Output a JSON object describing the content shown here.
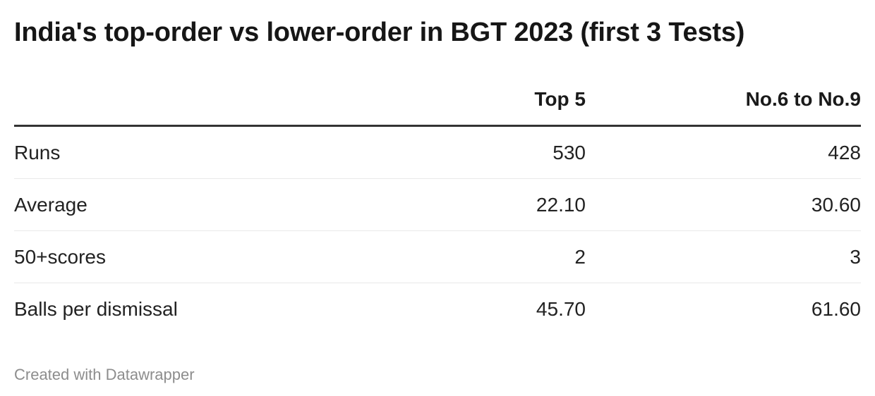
{
  "title": "India's top-order vs lower-order in BGT 2023 (first 3 Tests)",
  "table": {
    "header": {
      "label": "",
      "col1": "Top 5",
      "col2": "No.6 to No.9"
    },
    "rows": [
      {
        "label": "Runs",
        "col1": "530",
        "col2": "428"
      },
      {
        "label": "Average",
        "col1": "22.10",
        "col2": "30.60"
      },
      {
        "label": "50+scores",
        "col1": "2",
        "col2": "3"
      },
      {
        "label": "Balls per dismissal",
        "col1": "45.70",
        "col2": "61.60"
      }
    ]
  },
  "footer": {
    "attribution": "Created with Datawrapper"
  },
  "colors": {
    "title_text": "#161616",
    "body_text": "#222222",
    "header_rule": "#333333",
    "row_rule": "#e9e9e9",
    "attribution_text": "#8d8d8d",
    "background": "#ffffff"
  },
  "chart_data": {
    "type": "table",
    "title": "India's top-order vs lower-order in BGT 2023 (first 3 Tests)",
    "categories": [
      "Runs",
      "Average",
      "50+scores",
      "Balls per dismissal"
    ],
    "series": [
      {
        "name": "Top 5",
        "values": [
          530,
          22.1,
          2,
          45.7
        ]
      },
      {
        "name": "No.6 to No.9",
        "values": [
          428,
          30.6,
          3,
          61.6
        ]
      }
    ],
    "layout": {
      "value_alignment": "right",
      "grid": "horizontal-rules",
      "legend": "none"
    }
  }
}
